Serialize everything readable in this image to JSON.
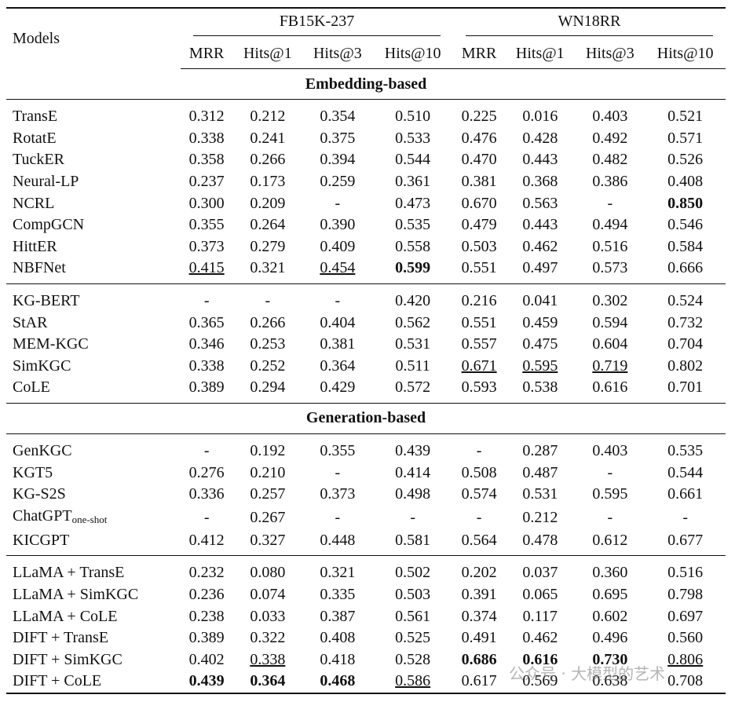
{
  "header": {
    "models": "Models",
    "datasets": [
      "FB15K-237",
      "WN18RR"
    ],
    "metrics": [
      "MRR",
      "Hits@1",
      "Hits@3",
      "Hits@10",
      "MRR",
      "Hits@1",
      "Hits@3",
      "Hits@10"
    ]
  },
  "sections": [
    {
      "title": "Embedding-based",
      "groups": [
        [
          [
            "TransE",
            "0.312",
            "0.212",
            "0.354",
            "0.510",
            "0.225",
            "0.016",
            "0.403",
            "0.521"
          ],
          [
            "RotatE",
            "0.338",
            "0.241",
            "0.375",
            "0.533",
            "0.476",
            "0.428",
            "0.492",
            "0.571"
          ],
          [
            "TuckER",
            "0.358",
            "0.266",
            "0.394",
            "0.544",
            "0.470",
            "0.443",
            "0.482",
            "0.526"
          ],
          [
            "Neural-LP",
            "0.237",
            "0.173",
            "0.259",
            "0.361",
            "0.381",
            "0.368",
            "0.386",
            "0.408"
          ],
          [
            "NCRL",
            "0.300",
            "0.209",
            "-",
            "0.473",
            "0.670",
            "0.563",
            "-",
            "0.850"
          ],
          [
            "CompGCN",
            "0.355",
            "0.264",
            "0.390",
            "0.535",
            "0.479",
            "0.443",
            "0.494",
            "0.546"
          ],
          [
            "HittER",
            "0.373",
            "0.279",
            "0.409",
            "0.558",
            "0.503",
            "0.462",
            "0.516",
            "0.584"
          ],
          [
            "NBFNet",
            "0.415",
            "0.321",
            "0.454",
            "0.599",
            "0.551",
            "0.497",
            "0.573",
            "0.666"
          ]
        ],
        [
          [
            "KG-BERT",
            "-",
            "-",
            "-",
            "0.420",
            "0.216",
            "0.041",
            "0.302",
            "0.524"
          ],
          [
            "StAR",
            "0.365",
            "0.266",
            "0.404",
            "0.562",
            "0.551",
            "0.459",
            "0.594",
            "0.732"
          ],
          [
            "MEM-KGC",
            "0.346",
            "0.253",
            "0.381",
            "0.531",
            "0.557",
            "0.475",
            "0.604",
            "0.704"
          ],
          [
            "SimKGC",
            "0.338",
            "0.252",
            "0.364",
            "0.511",
            "0.671",
            "0.595",
            "0.719",
            "0.802"
          ],
          [
            "CoLE",
            "0.389",
            "0.294",
            "0.429",
            "0.572",
            "0.593",
            "0.538",
            "0.616",
            "0.701"
          ]
        ]
      ]
    },
    {
      "title": "Generation-based",
      "groups": [
        [
          [
            "GenKGC",
            "-",
            "0.192",
            "0.355",
            "0.439",
            "-",
            "0.287",
            "0.403",
            "0.535"
          ],
          [
            "KGT5",
            "0.276",
            "0.210",
            "-",
            "0.414",
            "0.508",
            "0.487",
            "-",
            "0.544"
          ],
          [
            "KG-S2S",
            "0.336",
            "0.257",
            "0.373",
            "0.498",
            "0.574",
            "0.531",
            "0.595",
            "0.661"
          ],
          [
            {
              "text": "ChatGPT",
              "sub": "one-shot"
            },
            "-",
            "0.267",
            "-",
            "-",
            "-",
            "0.212",
            "-",
            "-"
          ],
          [
            "KICGPT",
            "0.412",
            "0.327",
            "0.448",
            "0.581",
            "0.564",
            "0.478",
            "0.612",
            "0.677"
          ]
        ],
        [
          [
            "LLaMA + TransE",
            "0.232",
            "0.080",
            "0.321",
            "0.502",
            "0.202",
            "0.037",
            "0.360",
            "0.516"
          ],
          [
            "LLaMA + SimKGC",
            "0.236",
            "0.074",
            "0.335",
            "0.503",
            "0.391",
            "0.065",
            "0.695",
            "0.798"
          ],
          [
            "LLaMA + CoLE",
            "0.238",
            "0.033",
            "0.387",
            "0.561",
            "0.374",
            "0.117",
            "0.602",
            "0.697"
          ],
          [
            "DIFT + TransE",
            "0.389",
            "0.322",
            "0.408",
            "0.525",
            "0.491",
            "0.462",
            "0.496",
            "0.560"
          ],
          [
            "DIFT + SimKGC",
            "0.402",
            "0.338",
            "0.418",
            "0.528",
            "0.686",
            "0.616",
            "0.730",
            "0.806"
          ],
          [
            "DIFT + CoLE",
            "0.439",
            "0.364",
            "0.468",
            "0.586",
            "0.617",
            "0.569",
            "0.638",
            "0.708"
          ]
        ]
      ]
    }
  ],
  "bold": [
    "sections.0.groups.0.7.4",
    "sections.0.groups.0.4.8",
    "sections.1.groups.1.4.5",
    "sections.1.groups.1.4.6",
    "sections.1.groups.1.4.7",
    "sections.1.groups.1.5.1",
    "sections.1.groups.1.5.2",
    "sections.1.groups.1.5.3"
  ],
  "underline": [
    "sections.0.groups.0.7.1",
    "sections.0.groups.0.7.3",
    "sections.0.groups.1.3.5",
    "sections.0.groups.1.3.6",
    "sections.0.groups.1.3.7",
    "sections.1.groups.1.4.2",
    "sections.1.groups.1.4.8",
    "sections.1.groups.1.5.4"
  ],
  "watermark": "公众号 · 大模型的艺术"
}
